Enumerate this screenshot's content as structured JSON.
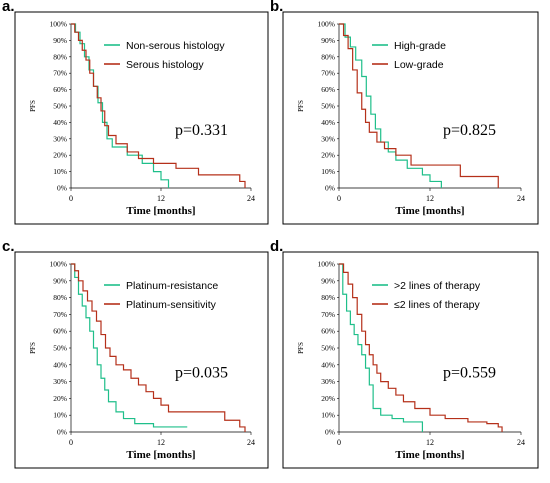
{
  "colors": {
    "green": "#1fbf8a",
    "red": "#b5301a"
  },
  "chart_data": [
    {
      "panel": "a.",
      "type": "line",
      "title": "",
      "xlabel": "Time [months]",
      "ylabel": "PFS",
      "xlim": [
        0,
        24
      ],
      "ylim": [
        0,
        100
      ],
      "x_ticks": [
        "0",
        "12",
        "24"
      ],
      "y_ticks": [
        "0%",
        "10%",
        "20%",
        "30%",
        "40%",
        "50%",
        "60%",
        "70%",
        "80%",
        "90%",
        "100%"
      ],
      "annotation": "p=0.331",
      "series": [
        {
          "name": "Non-serous histology",
          "color": "#1fbf8a",
          "steps": [
            [
              0,
              100
            ],
            [
              0.6,
              95
            ],
            [
              1.2,
              88
            ],
            [
              1.8,
              80
            ],
            [
              2.4,
              72
            ],
            [
              3.0,
              62
            ],
            [
              3.6,
              52
            ],
            [
              4.2,
              40
            ],
            [
              4.8,
              30
            ],
            [
              5.5,
              25
            ],
            [
              7.5,
              20
            ],
            [
              9.5,
              15
            ],
            [
              11,
              10
            ],
            [
              12,
              5
            ],
            [
              13,
              0
            ]
          ]
        },
        {
          "name": "Serous histology",
          "color": "#b5301a",
          "steps": [
            [
              0,
              100
            ],
            [
              0.5,
              95
            ],
            [
              1.0,
              90
            ],
            [
              1.5,
              84
            ],
            [
              2.0,
              78
            ],
            [
              2.5,
              70
            ],
            [
              3.0,
              62
            ],
            [
              3.5,
              55
            ],
            [
              4.0,
              47
            ],
            [
              4.5,
              38
            ],
            [
              5.0,
              32
            ],
            [
              6.0,
              27
            ],
            [
              7.5,
              22
            ],
            [
              9.0,
              18
            ],
            [
              11.0,
              15
            ],
            [
              14.0,
              12
            ],
            [
              17.0,
              8
            ],
            [
              20.5,
              8
            ],
            [
              22.5,
              4
            ],
            [
              23.2,
              0
            ]
          ]
        }
      ]
    },
    {
      "panel": "b.",
      "type": "line",
      "title": "",
      "xlabel": "Time [months]",
      "ylabel": "PFS",
      "xlim": [
        0,
        24
      ],
      "ylim": [
        0,
        100
      ],
      "x_ticks": [
        "0",
        "12",
        "24"
      ],
      "y_ticks": [
        "0%",
        "10%",
        "20%",
        "30%",
        "40%",
        "50%",
        "60%",
        "70%",
        "80%",
        "90%",
        "100%"
      ],
      "annotation": "p=0.825",
      "series": [
        {
          "name": "High-grade",
          "color": "#1fbf8a",
          "steps": [
            [
              0,
              100
            ],
            [
              0.8,
              92
            ],
            [
              1.5,
              86
            ],
            [
              2.2,
              78
            ],
            [
              3.0,
              68
            ],
            [
              3.6,
              56
            ],
            [
              4.2,
              45
            ],
            [
              4.8,
              36
            ],
            [
              5.5,
              28
            ],
            [
              6.5,
              22
            ],
            [
              7.5,
              17
            ],
            [
              9.0,
              12
            ],
            [
              11.0,
              8
            ],
            [
              12.0,
              4
            ],
            [
              13.5,
              0
            ]
          ]
        },
        {
          "name": "Low-grade",
          "color": "#b5301a",
          "steps": [
            [
              0,
              100
            ],
            [
              0.6,
              93
            ],
            [
              1.2,
              85
            ],
            [
              1.8,
              72
            ],
            [
              2.4,
              58
            ],
            [
              3.0,
              48
            ],
            [
              3.5,
              40
            ],
            [
              4.0,
              34
            ],
            [
              5.0,
              28
            ],
            [
              6.0,
              24
            ],
            [
              7.5,
              20
            ],
            [
              9.5,
              14
            ],
            [
              16.0,
              7
            ],
            [
              21.0,
              0
            ]
          ]
        }
      ]
    },
    {
      "panel": "c.",
      "type": "line",
      "title": "",
      "xlabel": "Time [months]",
      "ylabel": "PFS",
      "xlim": [
        0,
        24
      ],
      "ylim": [
        0,
        100
      ],
      "x_ticks": [
        "0",
        "12",
        "24"
      ],
      "y_ticks": [
        "0%",
        "10%",
        "20%",
        "30%",
        "40%",
        "50%",
        "60%",
        "70%",
        "80%",
        "90%",
        "100%"
      ],
      "annotation": "p=0.035",
      "series": [
        {
          "name": "Platinum-resistance",
          "color": "#1fbf8a",
          "steps": [
            [
              0,
              100
            ],
            [
              0.5,
              92
            ],
            [
              1.0,
              82
            ],
            [
              1.5,
              75
            ],
            [
              2.0,
              68
            ],
            [
              2.5,
              60
            ],
            [
              3.0,
              50
            ],
            [
              3.5,
              40
            ],
            [
              4.0,
              32
            ],
            [
              4.5,
              25
            ],
            [
              5.0,
              18
            ],
            [
              6.0,
              12
            ],
            [
              7.0,
              8
            ],
            [
              8.5,
              5
            ],
            [
              11.0,
              3
            ],
            [
              15.5,
              3
            ]
          ]
        },
        {
          "name": "Platinum-sensitivity",
          "color": "#b5301a",
          "steps": [
            [
              0,
              100
            ],
            [
              0.5,
              96
            ],
            [
              1.0,
              90
            ],
            [
              1.6,
              84
            ],
            [
              2.2,
              78
            ],
            [
              2.8,
              72
            ],
            [
              3.4,
              66
            ],
            [
              4.0,
              58
            ],
            [
              4.6,
              50
            ],
            [
              5.2,
              45
            ],
            [
              6.0,
              40
            ],
            [
              7.0,
              37
            ],
            [
              8.0,
              32
            ],
            [
              9.0,
              28
            ],
            [
              10.0,
              24
            ],
            [
              11.0,
              20
            ],
            [
              12.0,
              16
            ],
            [
              13.0,
              12
            ],
            [
              20.5,
              7
            ],
            [
              21.5,
              7
            ],
            [
              22.5,
              3
            ],
            [
              23.2,
              0
            ]
          ]
        }
      ]
    },
    {
      "panel": "d.",
      "type": "line",
      "title": "",
      "xlabel": "Time [months]",
      "ylabel": "PFS",
      "xlim": [
        0,
        24
      ],
      "ylim": [
        0,
        100
      ],
      "x_ticks": [
        "0",
        "12",
        "24"
      ],
      "y_ticks": [
        "0%",
        "10%",
        "20%",
        "30%",
        "40%",
        "50%",
        "60%",
        "70%",
        "80%",
        "90%",
        "100%"
      ],
      "annotation": "p=0.559",
      "series": [
        {
          "name": ">2 lines of therapy",
          "color": "#1fbf8a",
          "steps": [
            [
              0,
              100
            ],
            [
              0.5,
              82
            ],
            [
              1.0,
              72
            ],
            [
              1.5,
              64
            ],
            [
              2.0,
              58
            ],
            [
              2.5,
              52
            ],
            [
              3.0,
              46
            ],
            [
              3.5,
              38
            ],
            [
              4.0,
              28
            ],
            [
              4.5,
              14
            ],
            [
              5.5,
              10
            ],
            [
              7.0,
              8
            ],
            [
              8.5,
              6
            ],
            [
              11.0,
              0
            ]
          ]
        },
        {
          "name": "≤2 lines of therapy",
          "color": "#b5301a",
          "steps": [
            [
              0,
              100
            ],
            [
              0.6,
              95
            ],
            [
              1.2,
              88
            ],
            [
              1.8,
              80
            ],
            [
              2.4,
              70
            ],
            [
              3.0,
              60
            ],
            [
              3.5,
              52
            ],
            [
              4.0,
              46
            ],
            [
              4.5,
              40
            ],
            [
              5.0,
              35
            ],
            [
              5.5,
              30
            ],
            [
              6.5,
              26
            ],
            [
              7.5,
              22
            ],
            [
              8.5,
              18
            ],
            [
              10.0,
              14
            ],
            [
              12.0,
              10
            ],
            [
              14.0,
              8
            ],
            [
              17.0,
              6
            ],
            [
              19.5,
              5
            ],
            [
              21.0,
              3
            ],
            [
              21.5,
              0
            ]
          ]
        }
      ]
    }
  ]
}
